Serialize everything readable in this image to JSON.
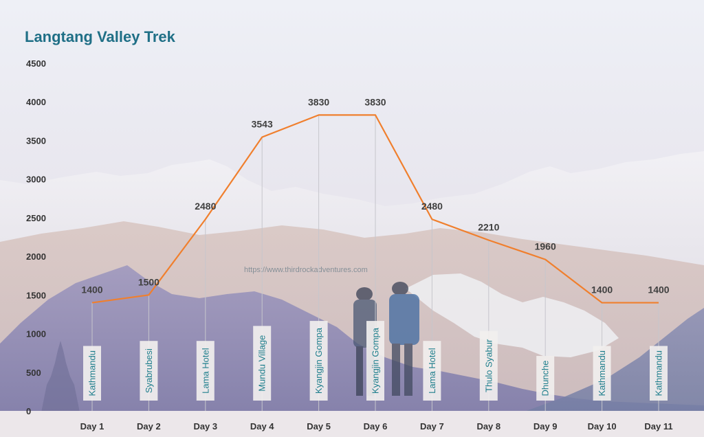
{
  "chart_data": {
    "type": "line",
    "title": "Langtang Valley Trek",
    "categories": [
      "Day 1",
      "Day 2",
      "Day 3",
      "Day 4",
      "Day 5",
      "Day 6",
      "Day 7",
      "Day 8",
      "Day 9",
      "Day 10",
      "Day 11"
    ],
    "places": [
      "Kathmandu",
      "Syabrubesi",
      "Lama Hotel",
      "Mundu Village",
      "Kyangjin Gompa",
      "Kyangjin Gompa",
      "Lama Hotel",
      "Thulo Syabur",
      "Dhunche",
      "Kathmandu",
      "Kathmandu"
    ],
    "values": [
      1400,
      1500,
      2480,
      3543,
      3830,
      3830,
      2480,
      2210,
      1960,
      1400,
      1400
    ],
    "y_ticks": [
      0,
      500,
      1000,
      1500,
      2000,
      2500,
      3000,
      3500,
      4000,
      4500
    ],
    "ylim": [
      0,
      4500
    ],
    "xlabel": "",
    "ylabel": "",
    "grid": false,
    "line_color": "#f07f2d",
    "title_color": "#1f6f86",
    "place_label_color": "#1e7e8c",
    "watermark": "https://www.thirdrockadventures.com"
  }
}
